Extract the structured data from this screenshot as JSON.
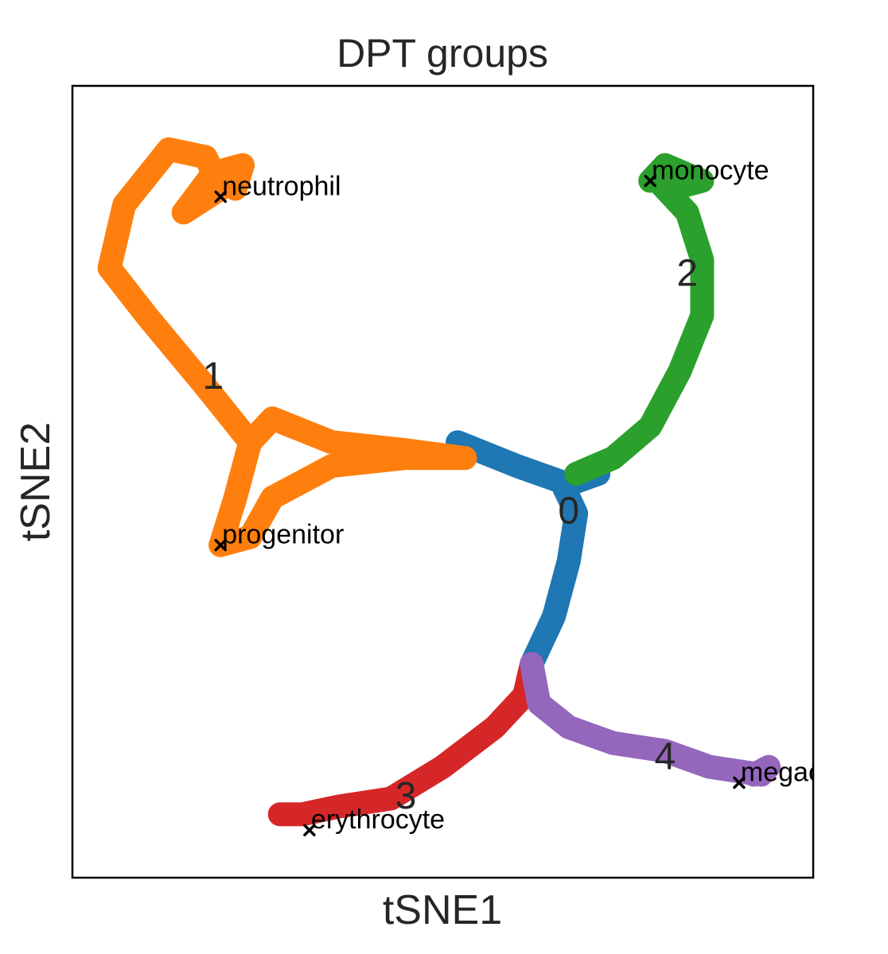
{
  "chart_data": {
    "type": "scatter",
    "title": "DPT groups",
    "xlabel": "tSNE1",
    "ylabel": "tSNE2",
    "xlim": [
      0,
      100
    ],
    "ylim": [
      0,
      100
    ],
    "grid": false,
    "colors": {
      "0": "#1f77b4",
      "1": "#ff7f0e",
      "2": "#2ca02c",
      "3": "#d62728",
      "4": "#9467bd"
    },
    "branches": [
      {
        "group": "0",
        "points": [
          [
            52,
            55
          ],
          [
            60,
            52
          ],
          [
            66,
            50
          ],
          [
            68,
            46
          ],
          [
            67,
            40
          ],
          [
            65,
            33
          ],
          [
            62,
            27
          ]
        ]
      },
      {
        "group": "0",
        "points": [
          [
            68,
            50
          ],
          [
            71,
            51
          ]
        ]
      },
      {
        "group": "1",
        "points": [
          [
            53,
            53
          ],
          [
            45,
            54
          ],
          [
            35,
            55
          ],
          [
            27,
            58
          ],
          [
            24,
            55
          ],
          [
            22,
            48
          ],
          [
            20,
            42
          ]
        ]
      },
      {
        "group": "1",
        "points": [
          [
            53,
            53
          ],
          [
            45,
            53
          ],
          [
            35,
            52
          ],
          [
            27,
            48
          ],
          [
            24,
            43
          ],
          [
            20,
            42
          ]
        ]
      },
      {
        "group": "1",
        "points": [
          [
            24,
            55
          ],
          [
            18,
            62
          ],
          [
            10,
            71
          ],
          [
            5,
            77
          ],
          [
            7,
            85
          ],
          [
            13,
            92
          ],
          [
            18,
            91
          ],
          [
            20,
            87
          ],
          [
            15,
            84
          ],
          [
            19,
            89
          ],
          [
            23,
            90
          ],
          [
            22,
            87
          ]
        ]
      },
      {
        "group": "2",
        "points": [
          [
            68,
            51
          ],
          [
            73,
            53
          ],
          [
            78,
            57
          ],
          [
            82,
            64
          ],
          [
            85,
            71
          ],
          [
            85,
            78
          ],
          [
            83,
            84
          ],
          [
            79,
            88
          ],
          [
            81,
            87
          ],
          [
            85,
            88
          ],
          [
            80,
            90
          ],
          [
            78,
            88
          ]
        ]
      },
      {
        "group": "3",
        "points": [
          [
            62,
            27
          ],
          [
            61,
            23
          ],
          [
            57,
            19
          ],
          [
            50,
            14
          ],
          [
            43,
            10
          ],
          [
            36,
            9
          ],
          [
            31,
            8
          ],
          [
            28,
            8
          ]
        ]
      },
      {
        "group": "4",
        "points": [
          [
            62,
            27
          ],
          [
            63,
            22
          ],
          [
            67,
            19
          ],
          [
            73,
            17
          ],
          [
            80,
            16
          ],
          [
            86,
            14
          ],
          [
            93,
            13
          ],
          [
            94,
            14
          ],
          [
            92,
            13
          ]
        ]
      }
    ],
    "group_labels": [
      {
        "text": "0",
        "x": 67,
        "y": 46
      },
      {
        "text": "1",
        "x": 19,
        "y": 63
      },
      {
        "text": "2",
        "x": 83,
        "y": 76
      },
      {
        "text": "3",
        "x": 45,
        "y": 10
      },
      {
        "text": "4",
        "x": 80,
        "y": 15
      }
    ],
    "cell_types": [
      {
        "text": "neutrophil",
        "x": 20,
        "y": 86
      },
      {
        "text": "monocyte",
        "x": 78,
        "y": 88
      },
      {
        "text": "progenitor",
        "x": 20,
        "y": 42
      },
      {
        "text": "erythrocyte",
        "x": 32,
        "y": 6
      },
      {
        "text": "megacaryocyte",
        "x": 90,
        "y": 12
      }
    ]
  }
}
